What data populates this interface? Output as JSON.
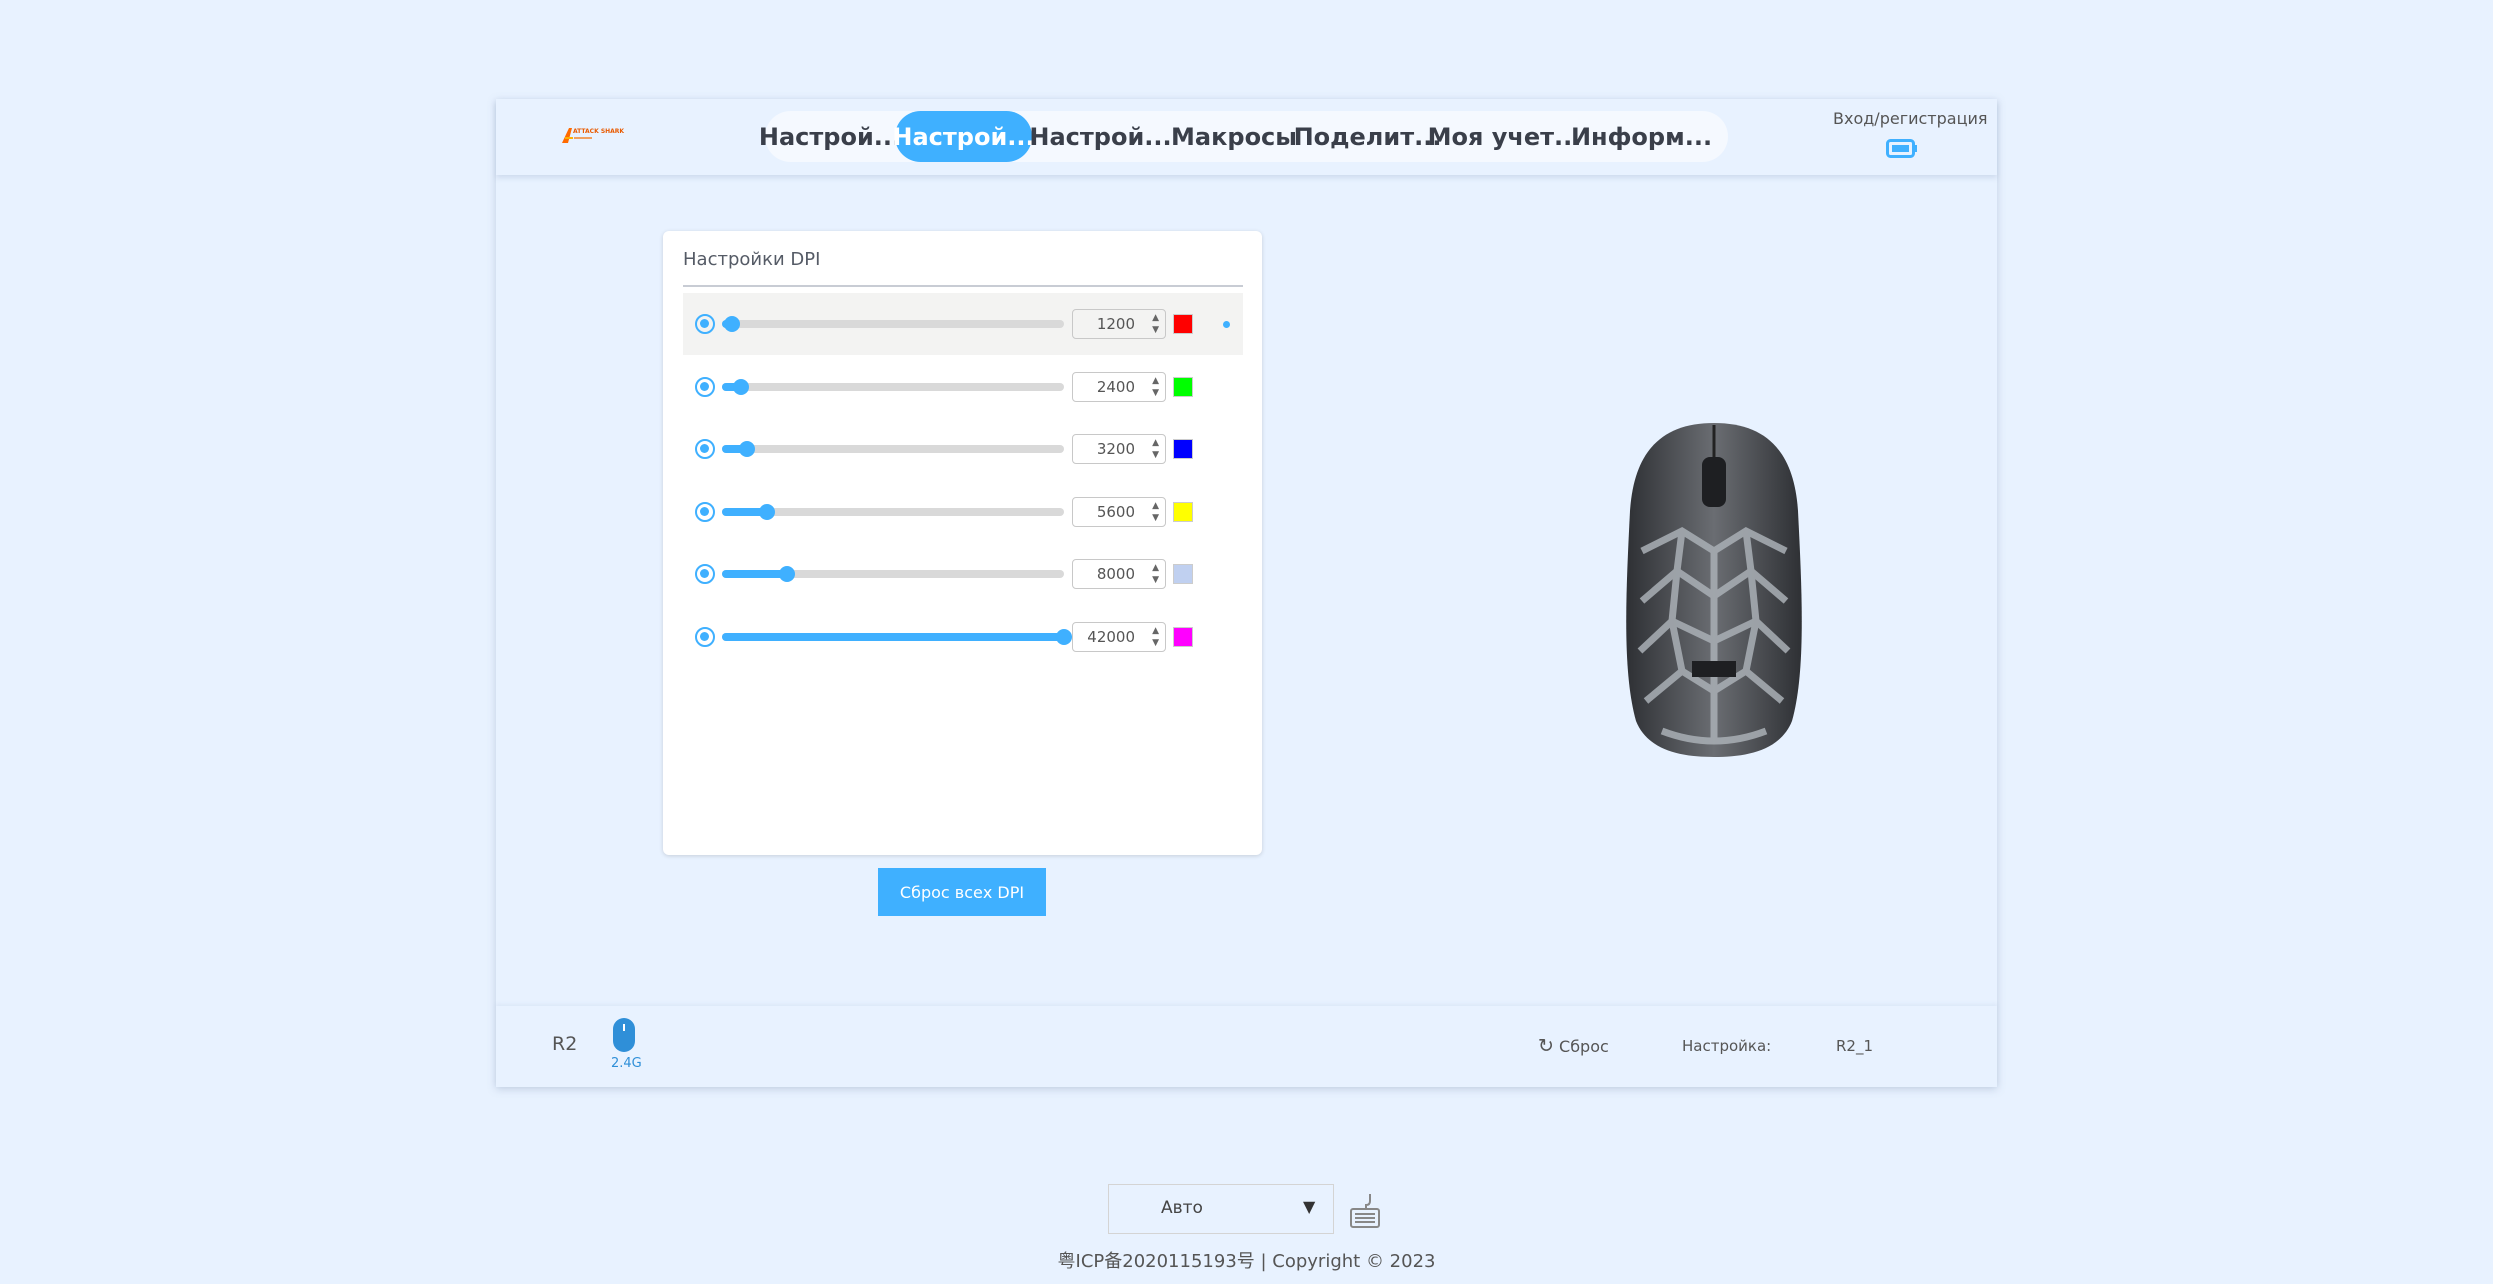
{
  "header": {
    "brand": "ATTACK SHARK",
    "login": "Вход/регистрация",
    "battery_icon": "battery-icon",
    "tabs": [
      {
        "label": "Настрой...",
        "active": false
      },
      {
        "label": "Настрой...",
        "active": true
      },
      {
        "label": "Настрой...",
        "active": false
      },
      {
        "label": "Макросы",
        "active": false
      },
      {
        "label": "Поделит...",
        "active": false
      },
      {
        "label": "Моя учет...",
        "active": false
      },
      {
        "label": "Информ...",
        "active": false
      }
    ]
  },
  "dpi": {
    "title": "Настройки DPI",
    "min": 100,
    "max": 42000,
    "selected": 0,
    "levels": [
      {
        "value": "1200",
        "color": "#ff0000"
      },
      {
        "value": "2400",
        "color": "#00ff00"
      },
      {
        "value": "3200",
        "color": "#0000ff"
      },
      {
        "value": "5600",
        "color": "#ffff00"
      },
      {
        "value": "8000",
        "color": "#c0d0f0"
      },
      {
        "value": "42000",
        "color": "#ff00ff"
      }
    ],
    "reset_all": "Сброс всех DPI"
  },
  "footer": {
    "device": "R2",
    "connection": "2.4G",
    "reset": "Сброс",
    "config_label": "Настройка:",
    "config_value": "R2_1"
  },
  "bottom": {
    "mode": "Авто",
    "copyright": "粤ICP备2020115193号 | Copyright © 2023"
  },
  "colors": {
    "accent": "#3fb0ff",
    "background": "#e8f2ff"
  }
}
